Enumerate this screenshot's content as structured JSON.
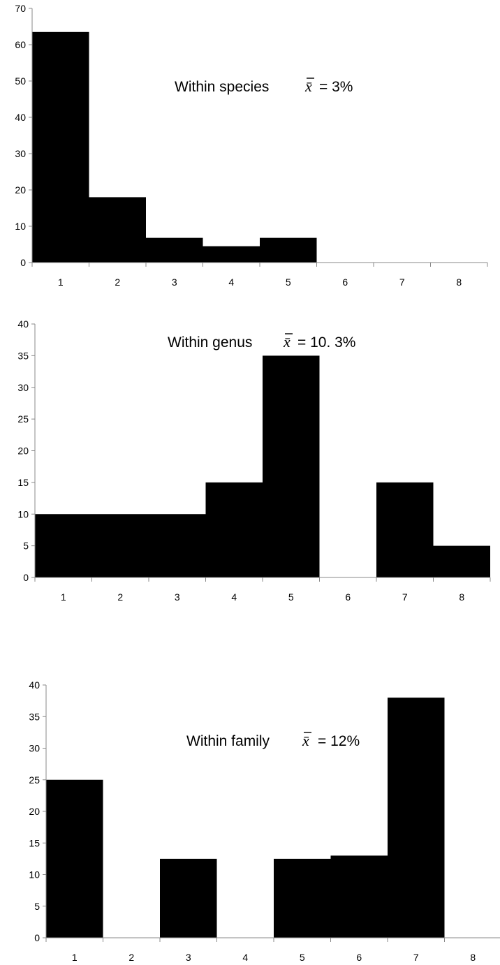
{
  "chart_data": [
    {
      "type": "bar",
      "categories": [
        "1",
        "2",
        "3",
        "4",
        "5",
        "6",
        "7",
        "8"
      ],
      "values": [
        63.5,
        18,
        6.8,
        4.5,
        6.8,
        0,
        0,
        0
      ],
      "ylim": [
        0,
        70
      ],
      "yticks": [
        "0",
        "10",
        "20",
        "30",
        "40",
        "50",
        "60",
        "70"
      ],
      "annotation": {
        "label": "Within species",
        "symbol": "x̄",
        "value": "= 3%"
      },
      "bar_color": "#000000",
      "grid": false
    },
    {
      "type": "bar",
      "categories": [
        "1",
        "2",
        "3",
        "4",
        "5",
        "6",
        "7",
        "8"
      ],
      "values": [
        10,
        10,
        10,
        15,
        35,
        0,
        15,
        5
      ],
      "ylim": [
        0,
        40
      ],
      "yticks": [
        "0",
        "5",
        "10",
        "15",
        "20",
        "25",
        "30",
        "35",
        "40"
      ],
      "annotation": {
        "label": "Within genus",
        "symbol": "x̄",
        "value": "= 10. 3%"
      },
      "bar_color": "#000000",
      "grid": false
    },
    {
      "type": "bar",
      "categories": [
        "1",
        "2",
        "3",
        "4",
        "5",
        "6",
        "7",
        "8"
      ],
      "values": [
        25,
        0,
        12.5,
        0,
        12.5,
        13,
        38,
        0
      ],
      "ylim": [
        0,
        40
      ],
      "yticks": [
        "0",
        "5",
        "10",
        "15",
        "20",
        "25",
        "30",
        "35",
        "40"
      ],
      "annotation": {
        "label": "Within family",
        "symbol": "x̄",
        "value": "= 12%"
      },
      "bar_color": "#000000",
      "grid": false
    }
  ]
}
